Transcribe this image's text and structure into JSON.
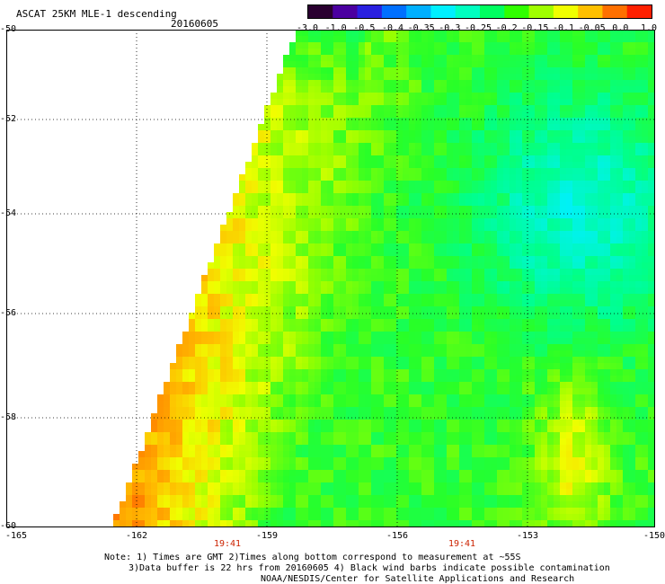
{
  "header": {
    "title": "ASCAT 25KM MLE-1 descending",
    "date": "20160605"
  },
  "colorbar": {
    "tick_labels": [
      "-3.0",
      "-1.0",
      "-0.5",
      "-0.4",
      "-0.35",
      "-0.3",
      "-0.25",
      "-0.2",
      "-0.15",
      "-0.1",
      "-0.05",
      "0.0",
      "1.0"
    ],
    "colors": [
      "#2a0030",
      "#4b00a0",
      "#2a20e0",
      "#0070ff",
      "#00b0ff",
      "#00f0ff",
      "#00ffc0",
      "#00ff60",
      "#30ff00",
      "#a0ff00",
      "#f0ff00",
      "#ffc000",
      "#ff7000",
      "#ff2000"
    ]
  },
  "axes": {
    "lat_labels": [
      "-50",
      "-52",
      "-54",
      "-56",
      "-58",
      "-60"
    ],
    "lon_labels": [
      "-165",
      "-162",
      "-159",
      "-156",
      "-153",
      "-150"
    ],
    "time_labels": [
      "19:41",
      "19:41"
    ]
  },
  "notes": {
    "line1": "Note: 1) Times are GMT 2)Times along bottom correspond to measurement at ~55S",
    "line2": "3)Data buffer is 22 hrs from 20160605 4) Black wind barbs indicate possible contamination",
    "line3": "NOAA/NESDIS/Center for Satellite Applications and Research"
  }
}
